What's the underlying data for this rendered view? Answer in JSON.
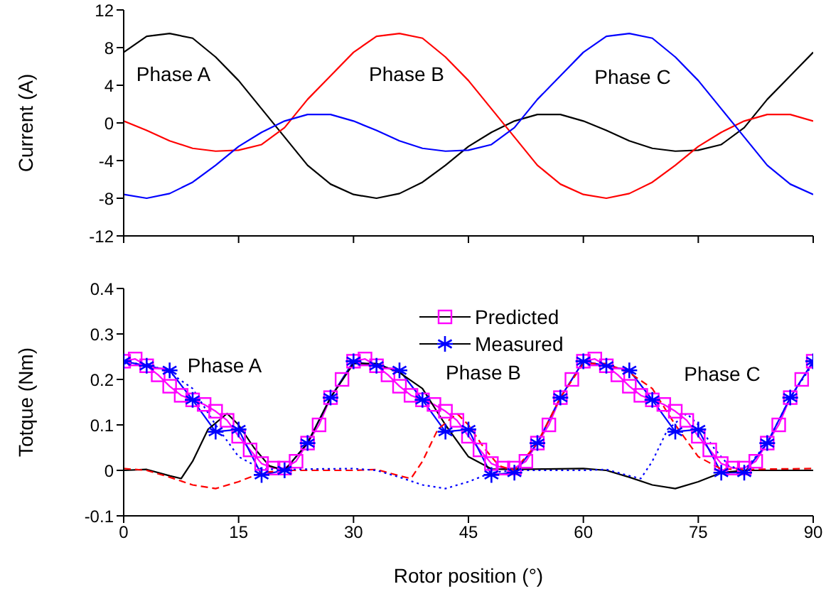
{
  "chart_data": [
    {
      "type": "line",
      "ylabel": "Current (A)",
      "xlim": [
        0,
        90
      ],
      "xticks": [
        0,
        15,
        30,
        45,
        60,
        75,
        90
      ],
      "ylim": [
        -12,
        12
      ],
      "yticks": [
        -12,
        -8,
        -4,
        0,
        4,
        8,
        12
      ],
      "tick_labels": "y",
      "grid": false,
      "legend": false,
      "marker": "none",
      "line_style": "solid",
      "x": [
        0,
        3,
        6,
        9,
        12,
        15,
        18,
        21,
        24,
        27,
        30,
        33,
        36,
        39,
        42,
        45,
        48,
        51,
        54,
        57,
        60,
        63,
        66,
        69,
        72,
        75,
        78,
        81,
        84,
        87,
        90
      ],
      "series": [
        {
          "color": "#000000",
          "values": [
            7.5,
            9.2,
            9.5,
            9.0,
            7.0,
            4.5,
            1.5,
            -1.5,
            -4.5,
            -6.5,
            -7.6,
            -8.0,
            -7.5,
            -6.3,
            -4.5,
            -2.5,
            -1.0,
            0.2,
            0.9,
            0.9,
            0.2,
            -0.8,
            -1.9,
            -2.7,
            -3.0,
            -2.9,
            -2.3,
            -0.5,
            2.5,
            5.0,
            7.5
          ]
        },
        {
          "color": "#ff0000",
          "values": [
            0.2,
            -0.8,
            -1.9,
            -2.7,
            -3.0,
            -2.9,
            -2.3,
            -0.5,
            2.5,
            5.0,
            7.5,
            9.2,
            9.5,
            9.0,
            7.0,
            4.5,
            1.5,
            -1.5,
            -4.5,
            -6.5,
            -7.6,
            -8.0,
            -7.5,
            -6.3,
            -4.5,
            -2.5,
            -1.0,
            0.2,
            0.9,
            0.9,
            0.2
          ]
        },
        {
          "color": "#0000ff",
          "values": [
            -7.6,
            -8.0,
            -7.5,
            -6.3,
            -4.5,
            -2.5,
            -1.0,
            0.2,
            0.9,
            0.9,
            0.2,
            -0.8,
            -1.9,
            -2.7,
            -3.0,
            -2.9,
            -2.3,
            -0.5,
            2.5,
            5.0,
            7.5,
            9.2,
            9.5,
            9.0,
            7.0,
            4.5,
            1.5,
            -1.5,
            -4.5,
            -6.5,
            -7.6
          ]
        }
      ],
      "annotations": [
        "Phase A",
        "Phase B",
        "Phase C"
      ]
    },
    {
      "type": "line",
      "xlabel": "Rotor position (°)",
      "ylabel": "Totque (Nm)",
      "xlim": [
        0,
        90
      ],
      "xticks": [
        0,
        15,
        30,
        45,
        60,
        75,
        90
      ],
      "ylim": [
        -0.1,
        0.4
      ],
      "yticks": [
        -0.1,
        0.0,
        0.1,
        0.2,
        0.3,
        0.4
      ],
      "grid": false,
      "legend": "top",
      "series": [
        {
          "name": "Predicted",
          "color": "#ff00ff",
          "marker": "square",
          "line_style": "solid",
          "x": [
            0,
            1.5,
            3,
            4.5,
            6,
            7.5,
            9,
            10.5,
            12,
            13.5,
            15,
            16.5,
            18,
            19.5,
            21,
            22.5,
            24,
            25.5,
            27,
            28.5,
            30,
            31.5,
            33,
            34.5,
            36,
            37.5,
            39,
            40.5,
            42,
            43.5,
            45,
            46.5,
            48,
            49.5,
            51,
            52.5,
            54,
            55.5,
            57,
            58.5,
            60,
            61.5,
            63,
            64.5,
            66,
            67.5,
            69,
            70.5,
            72,
            73.5,
            75,
            76.5,
            78,
            79.5,
            81,
            82.5,
            84,
            85.5,
            87,
            88.5,
            90
          ],
          "values": [
            0.24,
            0.245,
            0.23,
            0.21,
            0.185,
            0.165,
            0.155,
            0.145,
            0.13,
            0.11,
            0.075,
            0.045,
            0.015,
            0.005,
            0.005,
            0.02,
            0.06,
            0.1,
            0.16,
            0.2,
            0.24,
            0.245,
            0.23,
            0.21,
            0.185,
            0.165,
            0.155,
            0.145,
            0.13,
            0.11,
            0.075,
            0.045,
            0.015,
            0.005,
            0.005,
            0.02,
            0.06,
            0.1,
            0.16,
            0.2,
            0.24,
            0.245,
            0.23,
            0.21,
            0.185,
            0.165,
            0.155,
            0.145,
            0.13,
            0.11,
            0.075,
            0.045,
            0.015,
            0.005,
            0.005,
            0.02,
            0.06,
            0.1,
            0.16,
            0.2,
            0.24
          ]
        },
        {
          "name": "Measured",
          "color": "#0000ff",
          "marker": "cross",
          "line_style": "solid",
          "x": [
            0,
            3,
            6,
            9,
            12,
            15,
            18,
            21,
            24,
            27,
            30,
            33,
            36,
            39,
            42,
            45,
            48,
            51,
            54,
            57,
            60,
            63,
            66,
            69,
            72,
            75,
            78,
            81,
            84,
            87,
            90
          ],
          "values": [
            0.24,
            0.23,
            0.22,
            0.155,
            0.085,
            0.09,
            -0.01,
            0.0,
            0.06,
            0.16,
            0.24,
            0.23,
            0.22,
            0.155,
            0.085,
            0.09,
            -0.01,
            -0.005,
            0.06,
            0.16,
            0.24,
            0.23,
            0.22,
            0.155,
            0.085,
            0.09,
            -0.005,
            -0.005,
            0.06,
            0.16,
            0.24
          ]
        },
        {
          "color": "#000000",
          "marker": "none",
          "line_style": "solid",
          "x": [
            0,
            3,
            6,
            7.5,
            9,
            11,
            13.5,
            15,
            17,
            19,
            21,
            24,
            27,
            30,
            33,
            36,
            39,
            42,
            45,
            48,
            51,
            55,
            60,
            63,
            66,
            69,
            72,
            75,
            78,
            81,
            84,
            90
          ],
          "values": [
            0,
            0.002,
            -0.012,
            -0.018,
            0.02,
            0.09,
            0.125,
            0.1,
            0.05,
            0.01,
            0,
            0.06,
            0.16,
            0.235,
            0.235,
            0.215,
            0.18,
            0.1,
            0.03,
            0.003,
            0.002,
            0.003,
            0.004,
            0,
            -0.015,
            -0.032,
            -0.04,
            -0.025,
            -0.005,
            0,
            0,
            0
          ]
        },
        {
          "color": "#ff0000",
          "marker": "none",
          "line_style": "dashed",
          "x": [
            0,
            3,
            6,
            9,
            12,
            15,
            18,
            21,
            24,
            30,
            33,
            36,
            37.5,
            39,
            41,
            43.5,
            45,
            47,
            49,
            51,
            54,
            57,
            60,
            63,
            66,
            69,
            72,
            75,
            78,
            81,
            85,
            90
          ],
          "values": [
            0.004,
            0,
            -0.015,
            -0.032,
            -0.04,
            -0.025,
            -0.005,
            0,
            0,
            0,
            0.002,
            -0.012,
            -0.018,
            0.02,
            0.09,
            0.125,
            0.1,
            0.05,
            0.01,
            0,
            0.06,
            0.16,
            0.235,
            0.235,
            0.215,
            0.18,
            0.1,
            0.03,
            0.003,
            0.002,
            0.003,
            0.004
          ]
        },
        {
          "color": "#0000ff",
          "marker": "none",
          "line_style": "dotted",
          "x": [
            0,
            3,
            6,
            9,
            12,
            15,
            18,
            21,
            25,
            30,
            33,
            36,
            39,
            42,
            45,
            48,
            51,
            54,
            60,
            63,
            66,
            67.5,
            69,
            71,
            73.5,
            75,
            77,
            79,
            81,
            84,
            87,
            90
          ],
          "values": [
            0.235,
            0.235,
            0.215,
            0.18,
            0.1,
            0.03,
            0.003,
            0.002,
            0.003,
            0.004,
            0,
            -0.015,
            -0.032,
            -0.04,
            -0.025,
            -0.005,
            0,
            0,
            0,
            0.002,
            -0.012,
            -0.018,
            0.02,
            0.09,
            0.125,
            0.1,
            0.05,
            0.01,
            0,
            0.06,
            0.16,
            0.235
          ]
        }
      ],
      "annotations": [
        "Phase A",
        "Phase B",
        "Phase C"
      ]
    }
  ]
}
